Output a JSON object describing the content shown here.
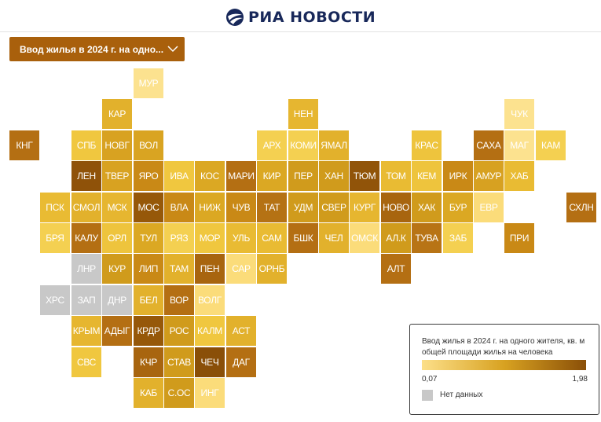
{
  "brand": {
    "name": "РИА НОВОСТИ",
    "color": "#18285a"
  },
  "dropdown": {
    "label": "Ввод жилья в 2024 г. на одно...",
    "bg": "#a9600c"
  },
  "legend": {
    "title": "Ввод жилья в 2024 г. на одного жителя, кв. м общей площади жилья на человека",
    "min": "0,07",
    "max": "1,98",
    "no_data": "Нет данных",
    "colors": [
      "#fcdf89",
      "#d8a221",
      "#8a4f08"
    ],
    "no_data_color": "#c8c8c8"
  },
  "regions": [
    {
      "label": "МУР",
      "col": 4,
      "row": 0,
      "color": "#fce28f"
    },
    {
      "label": "КАР",
      "col": 3,
      "row": 1,
      "color": "#e2b12c"
    },
    {
      "label": "НЕН",
      "col": 9,
      "row": 1,
      "color": "#e6b630"
    },
    {
      "label": "ЧУК",
      "col": 16,
      "row": 1,
      "color": "#fce28f"
    },
    {
      "label": "КНГ",
      "col": 0,
      "row": 2,
      "color": "#b46f13"
    },
    {
      "label": "СПБ",
      "col": 2,
      "row": 2,
      "color": "#f0c73f"
    },
    {
      "label": "НОВГ",
      "col": 3,
      "row": 2,
      "color": "#d8a221"
    },
    {
      "label": "ВОЛ",
      "col": 4,
      "row": 2,
      "color": "#d9a422"
    },
    {
      "label": "АРХ",
      "col": 8,
      "row": 2,
      "color": "#f4d051"
    },
    {
      "label": "КОМИ",
      "col": 9,
      "row": 2,
      "color": "#f4d051"
    },
    {
      "label": "ЯМАЛ",
      "col": 10,
      "row": 2,
      "color": "#e2b12c"
    },
    {
      "label": "КРАС",
      "col": 13,
      "row": 2,
      "color": "#eec43d"
    },
    {
      "label": "САХА",
      "col": 15,
      "row": 2,
      "color": "#b46f13"
    },
    {
      "label": "МАГ",
      "col": 16,
      "row": 2,
      "color": "#fce28f"
    },
    {
      "label": "КАМ",
      "col": 17,
      "row": 2,
      "color": "#f4d051"
    },
    {
      "label": "ЛЕН",
      "col": 2,
      "row": 3,
      "color": "#8f5209"
    },
    {
      "label": "ТВЕР",
      "col": 3,
      "row": 3,
      "color": "#d8a221"
    },
    {
      "label": "ЯРО",
      "col": 4,
      "row": 3,
      "color": "#c98916"
    },
    {
      "label": "ИВА",
      "col": 5,
      "row": 3,
      "color": "#f0c73f"
    },
    {
      "label": "КОС",
      "col": 6,
      "row": 3,
      "color": "#dba823"
    },
    {
      "label": "МАРИ",
      "col": 7,
      "row": 3,
      "color": "#b46f13"
    },
    {
      "label": "КИР",
      "col": 8,
      "row": 3,
      "color": "#dba823"
    },
    {
      "label": "ПЕР",
      "col": 9,
      "row": 3,
      "color": "#d09b1c"
    },
    {
      "label": "ХАН",
      "col": 10,
      "row": 3,
      "color": "#d09b1c"
    },
    {
      "label": "ТЮМ",
      "col": 11,
      "row": 3,
      "color": "#915409"
    },
    {
      "label": "ТОМ",
      "col": 12,
      "row": 3,
      "color": "#e9bb33"
    },
    {
      "label": "КЕМ",
      "col": 13,
      "row": 3,
      "color": "#eec43d"
    },
    {
      "label": "ИРК",
      "col": 14,
      "row": 3,
      "color": "#c98916"
    },
    {
      "label": "АМУР",
      "col": 15,
      "row": 3,
      "color": "#d7a121"
    },
    {
      "label": "ХАБ",
      "col": 16,
      "row": 3,
      "color": "#e9bb33"
    },
    {
      "label": "ПСК",
      "col": 1,
      "row": 4,
      "color": "#e9bb33"
    },
    {
      "label": "СМОЛ",
      "col": 2,
      "row": 4,
      "color": "#e2b12c"
    },
    {
      "label": "МСК",
      "col": 3,
      "row": 4,
      "color": "#e6b630"
    },
    {
      "label": "МОС",
      "col": 4,
      "row": 4,
      "color": "#965809"
    },
    {
      "label": "ВЛА",
      "col": 5,
      "row": 4,
      "color": "#c98916"
    },
    {
      "label": "НИЖ",
      "col": 6,
      "row": 4,
      "color": "#dba823"
    },
    {
      "label": "ЧУВ",
      "col": 7,
      "row": 4,
      "color": "#c98916"
    },
    {
      "label": "ТАТ",
      "col": 8,
      "row": 4,
      "color": "#b57214"
    },
    {
      "label": "УДМ",
      "col": 9,
      "row": 4,
      "color": "#d09b1c"
    },
    {
      "label": "СВЕР",
      "col": 10,
      "row": 4,
      "color": "#d09b1c"
    },
    {
      "label": "КУРГ",
      "col": 11,
      "row": 4,
      "color": "#e6b630"
    },
    {
      "label": "НОВО",
      "col": 12,
      "row": 4,
      "color": "#a8650f"
    },
    {
      "label": "ХАК",
      "col": 13,
      "row": 4,
      "color": "#d09b1c"
    },
    {
      "label": "БУР",
      "col": 14,
      "row": 4,
      "color": "#dba823"
    },
    {
      "label": "ЕВР",
      "col": 15,
      "row": 4,
      "color": "#fbdc7a"
    },
    {
      "label": "СХЛН",
      "col": 18,
      "row": 4,
      "color": "#b46f13"
    },
    {
      "label": "БРЯ",
      "col": 1,
      "row": 5,
      "color": "#f4d051"
    },
    {
      "label": "КАЛУ",
      "col": 2,
      "row": 5,
      "color": "#b46f13"
    },
    {
      "label": "ОРЛ",
      "col": 3,
      "row": 5,
      "color": "#eec43d"
    },
    {
      "label": "ТУЛ",
      "col": 4,
      "row": 5,
      "color": "#dba823"
    },
    {
      "label": "РЯЗ",
      "col": 5,
      "row": 5,
      "color": "#f4d051"
    },
    {
      "label": "МОР",
      "col": 6,
      "row": 5,
      "color": "#f0c73f"
    },
    {
      "label": "УЛЬ",
      "col": 7,
      "row": 5,
      "color": "#e9bb33"
    },
    {
      "label": "САМ",
      "col": 8,
      "row": 5,
      "color": "#e9bb33"
    },
    {
      "label": "БШК",
      "col": 9,
      "row": 5,
      "color": "#b46f13"
    },
    {
      "label": "ЧЕЛ",
      "col": 10,
      "row": 5,
      "color": "#e2b12c"
    },
    {
      "label": "ОМСК",
      "col": 11,
      "row": 5,
      "color": "#fbdc7a"
    },
    {
      "label": "АЛ.К",
      "col": 12,
      "row": 5,
      "color": "#d09b1c"
    },
    {
      "label": "ТУВА",
      "col": 13,
      "row": 5,
      "color": "#b87415"
    },
    {
      "label": "ЗАБ",
      "col": 14,
      "row": 5,
      "color": "#f4d051"
    },
    {
      "label": "ПРИ",
      "col": 16,
      "row": 5,
      "color": "#c98916"
    },
    {
      "label": "ЛНР",
      "col": 2,
      "row": 6,
      "color": "#c8c8c8"
    },
    {
      "label": "КУР",
      "col": 3,
      "row": 6,
      "color": "#d09b1c"
    },
    {
      "label": "ЛИП",
      "col": 4,
      "row": 6,
      "color": "#c98916"
    },
    {
      "label": "ТАМ",
      "col": 5,
      "row": 6,
      "color": "#e2b12c"
    },
    {
      "label": "ПЕН",
      "col": 6,
      "row": 6,
      "color": "#a8650f"
    },
    {
      "label": "САР",
      "col": 7,
      "row": 6,
      "color": "#fbdc7a"
    },
    {
      "label": "ОРНБ",
      "col": 8,
      "row": 6,
      "color": "#e2b12c"
    },
    {
      "label": "АЛТ",
      "col": 12,
      "row": 6,
      "color": "#b46f13"
    },
    {
      "label": "ХРС",
      "col": 1,
      "row": 7,
      "color": "#c8c8c8"
    },
    {
      "label": "ЗАП",
      "col": 2,
      "row": 7,
      "color": "#c8c8c8"
    },
    {
      "label": "ДНР",
      "col": 3,
      "row": 7,
      "color": "#c8c8c8"
    },
    {
      "label": "БЕЛ",
      "col": 4,
      "row": 7,
      "color": "#e2b12c"
    },
    {
      "label": "ВОР",
      "col": 5,
      "row": 7,
      "color": "#b46f13"
    },
    {
      "label": "ВОЛГ",
      "col": 6,
      "row": 7,
      "color": "#fbdc7a"
    },
    {
      "label": "КРЫМ",
      "col": 2,
      "row": 8,
      "color": "#e6b630"
    },
    {
      "label": "АДЫГ",
      "col": 3,
      "row": 8,
      "color": "#b46f13"
    },
    {
      "label": "КРДР",
      "col": 4,
      "row": 8,
      "color": "#965809"
    },
    {
      "label": "РОС",
      "col": 5,
      "row": 8,
      "color": "#d09b1c"
    },
    {
      "label": "КАЛМ",
      "col": 6,
      "row": 8,
      "color": "#f0c73f"
    },
    {
      "label": "АСТ",
      "col": 7,
      "row": 8,
      "color": "#e2b12c"
    },
    {
      "label": "СВС",
      "col": 2,
      "row": 9,
      "color": "#f0c73f"
    },
    {
      "label": "КЧР",
      "col": 4,
      "row": 9,
      "color": "#a8650f"
    },
    {
      "label": "СТАВ",
      "col": 5,
      "row": 9,
      "color": "#d09b1c"
    },
    {
      "label": "ЧЕЧ",
      "col": 6,
      "row": 9,
      "color": "#8a4f08"
    },
    {
      "label": "ДАГ",
      "col": 7,
      "row": 9,
      "color": "#b46f13"
    },
    {
      "label": "КАБ",
      "col": 4,
      "row": 10,
      "color": "#e2b12c"
    },
    {
      "label": "С.ОС",
      "col": 5,
      "row": 10,
      "color": "#d09b1c"
    },
    {
      "label": "ИНГ",
      "col": 6,
      "row": 10,
      "color": "#fbdc7a"
    }
  ]
}
